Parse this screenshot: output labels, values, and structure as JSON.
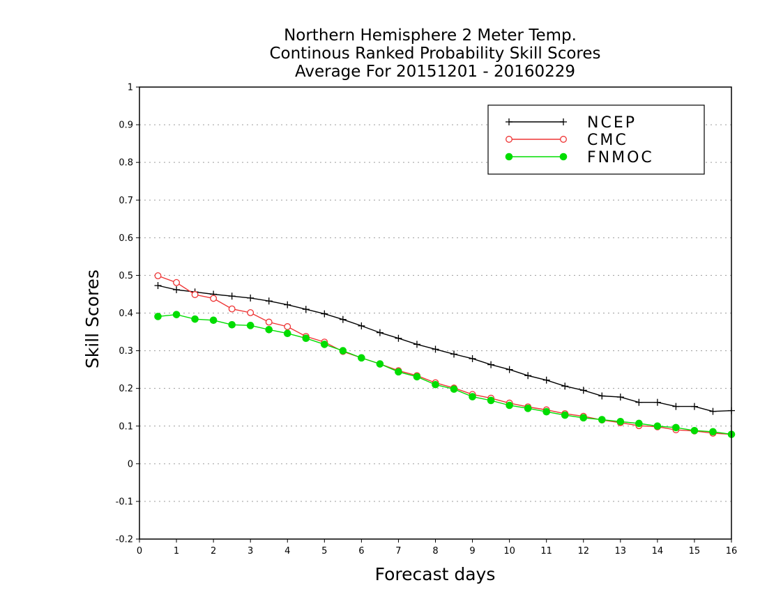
{
  "chart_data": {
    "type": "line",
    "title": [
      "Northern Hemisphere 2 Meter Temp.",
      "Continous Ranked Probability Skill Scores",
      "Average For 20151201 - 20160229"
    ],
    "xlabel": "Forecast days",
    "ylabel": "Skill Scores",
    "xlim": [
      0,
      16
    ],
    "ylim": [
      -0.2,
      1
    ],
    "xticks": [
      "0",
      "1",
      "2",
      "3",
      "4",
      "5",
      "6",
      "7",
      "8",
      "9",
      "10",
      "11",
      "12",
      "13",
      "14",
      "15",
      "16"
    ],
    "yticks": [
      "-0.2",
      "-0.1",
      "0",
      "0.1",
      "0.2",
      "0.3",
      "0.4",
      "0.5",
      "0.6",
      "0.7",
      "0.8",
      "0.9",
      "1"
    ],
    "grid": true,
    "legend_position": "top-right",
    "x": [
      0.5,
      1,
      1.5,
      2,
      2.5,
      3,
      3.5,
      4,
      4.5,
      5,
      5.5,
      6,
      6.5,
      7,
      7.5,
      8,
      8.5,
      9,
      9.5,
      10,
      10.5,
      11,
      11.5,
      12,
      12.5,
      13,
      13.5,
      14,
      14.5,
      15,
      15.5,
      16
    ],
    "series": [
      {
        "name": "NCEP",
        "color": "#000000",
        "marker": "plus",
        "values": [
          0.473,
          0.462,
          0.456,
          0.45,
          0.445,
          0.44,
          0.432,
          0.422,
          0.41,
          0.398,
          0.383,
          0.366,
          0.348,
          0.333,
          0.317,
          0.304,
          0.291,
          0.279,
          0.263,
          0.25,
          0.234,
          0.222,
          0.206,
          0.195,
          0.18,
          0.177,
          0.163,
          0.163,
          0.152,
          0.152,
          0.139,
          0.141
        ]
      },
      {
        "name": "CMC",
        "color": "#ee3333",
        "marker": "open-circle",
        "values": [
          0.499,
          0.481,
          0.449,
          0.439,
          0.411,
          0.401,
          0.376,
          0.364,
          0.338,
          0.323,
          0.298,
          0.281,
          0.265,
          0.247,
          0.234,
          0.215,
          0.201,
          0.184,
          0.174,
          0.161,
          0.151,
          0.143,
          0.133,
          0.126,
          0.116,
          0.109,
          0.101,
          0.098,
          0.09,
          0.087,
          0.081,
          0.078
        ]
      },
      {
        "name": "FNMOC",
        "color": "#00dd00",
        "marker": "filled-circle",
        "values": [
          0.391,
          0.396,
          0.384,
          0.381,
          0.369,
          0.367,
          0.356,
          0.346,
          0.333,
          0.317,
          0.3,
          0.281,
          0.265,
          0.244,
          0.231,
          0.21,
          0.198,
          0.178,
          0.168,
          0.155,
          0.147,
          0.138,
          0.129,
          0.122,
          0.117,
          0.112,
          0.107,
          0.1,
          0.096,
          0.088,
          0.085,
          0.078
        ]
      }
    ]
  }
}
